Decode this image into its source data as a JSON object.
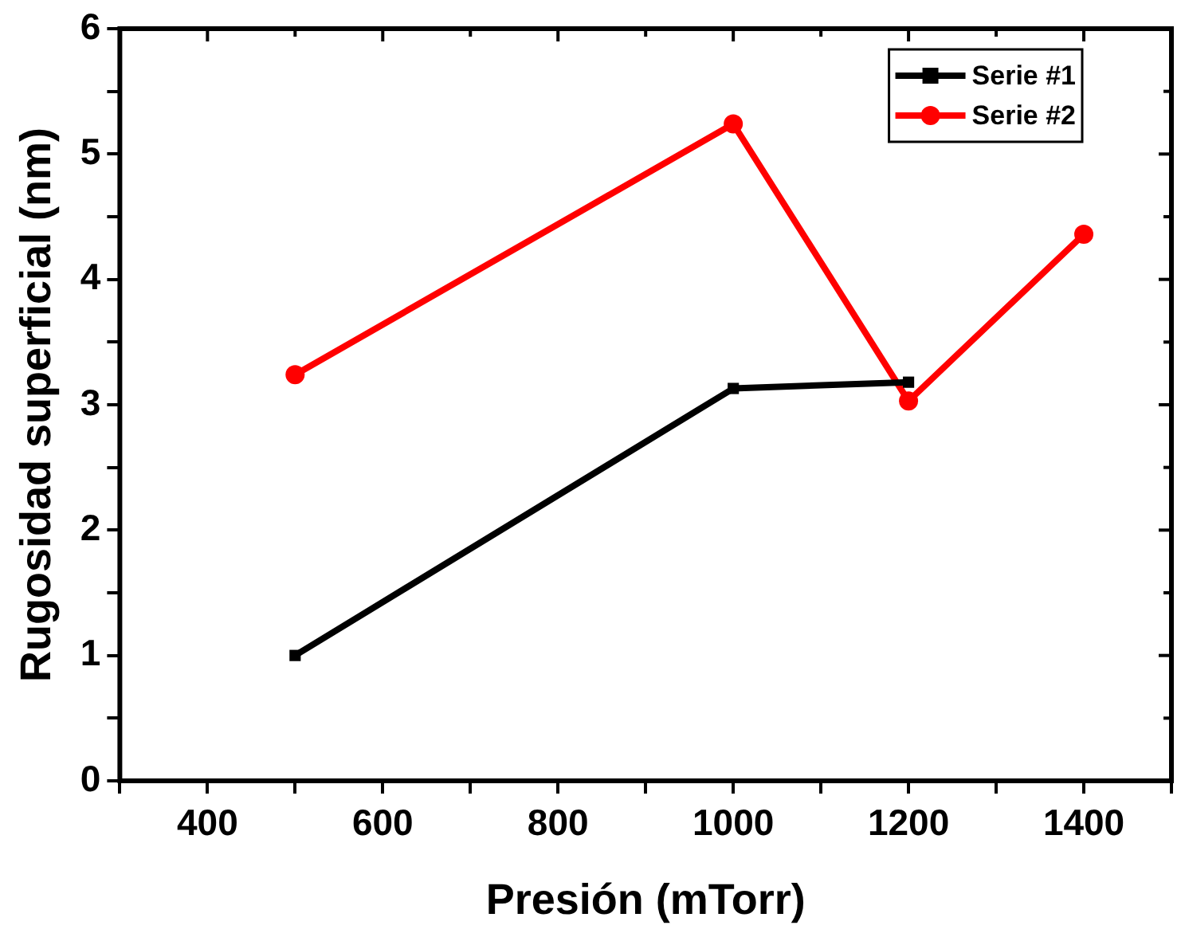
{
  "chart_data": {
    "type": "line",
    "xlabel": "Presión (mTorr)",
    "ylabel": "Rugosidad superficial (nm)",
    "xlim": [
      300,
      1500
    ],
    "ylim": [
      0,
      6
    ],
    "xticks": [
      {
        "value": 300,
        "label": null
      },
      400,
      {
        "value": 500,
        "label": null
      },
      600,
      {
        "value": 700,
        "label": null
      },
      800,
      {
        "value": 900,
        "label": null
      },
      1000,
      {
        "value": 1100,
        "label": null
      },
      1200,
      {
        "value": 1300,
        "label": null
      },
      1400,
      {
        "value": 1500,
        "label": null
      }
    ],
    "yticks": [
      0,
      {
        "value": 0.5,
        "label": null
      },
      1,
      {
        "value": 1.5,
        "label": null
      },
      2,
      {
        "value": 2.5,
        "label": null
      },
      3,
      {
        "value": 3.5,
        "label": null
      },
      4,
      {
        "value": 4.5,
        "label": null
      },
      5,
      {
        "value": 5.5,
        "label": null
      },
      6
    ],
    "grid": false,
    "legend": "top right",
    "line_style": "solid",
    "series": [
      {
        "name": "Serie #1",
        "color": "#000000",
        "marker": "square",
        "x": [
          500,
          1000,
          1200
        ],
        "values": [
          1.0,
          3.13,
          3.18
        ]
      },
      {
        "name": "Serie #2",
        "color": "#ff0000",
        "marker": "circle",
        "x": [
          500,
          1000,
          1200,
          1400
        ],
        "values": [
          3.24,
          5.24,
          3.03,
          4.36
        ]
      }
    ]
  }
}
